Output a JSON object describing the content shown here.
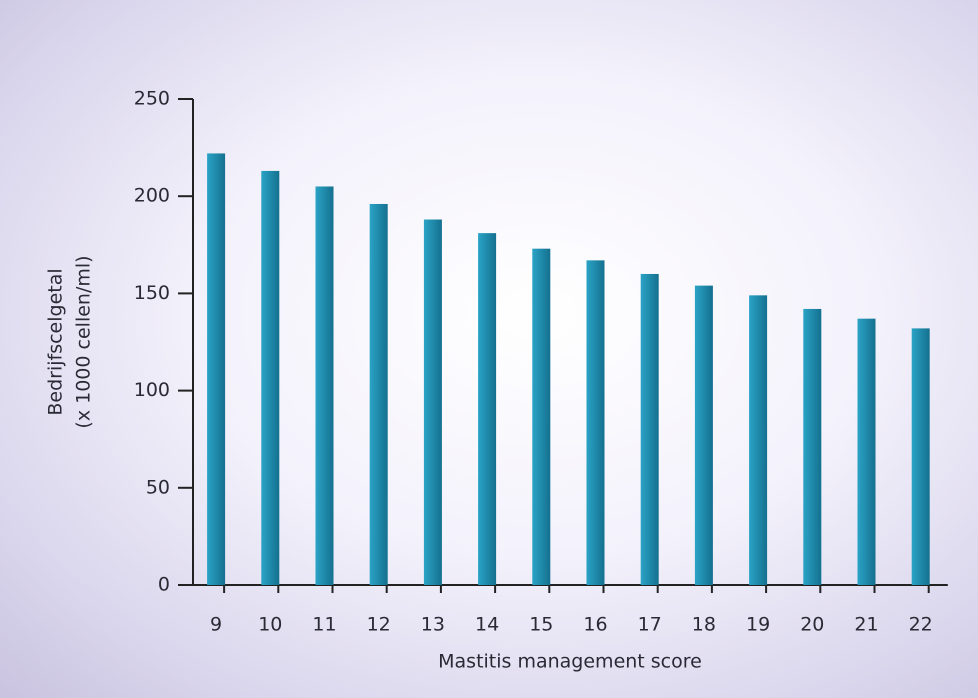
{
  "chart_data": {
    "type": "bar",
    "ylabel": [
      "Bedrijfscelgetal",
      "(x 1000 cellen/ml)"
    ],
    "xlabel": "Mastitis management score",
    "categories": [
      "9",
      "10",
      "11",
      "12",
      "13",
      "14",
      "15",
      "16",
      "17",
      "18",
      "19",
      "20",
      "21",
      "22"
    ],
    "values": [
      222,
      213,
      205,
      196,
      188,
      181,
      173,
      167,
      160,
      154,
      149,
      142,
      137,
      132
    ],
    "color": "#1e8fb3",
    "ylim": [
      0,
      250
    ],
    "yticks": [
      0,
      50,
      100,
      150,
      200,
      250
    ],
    "grid": false
  }
}
